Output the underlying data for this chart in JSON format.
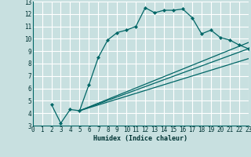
{
  "xlabel": "Humidex (Indice chaleur)",
  "xlim": [
    0,
    23
  ],
  "ylim": [
    3,
    13
  ],
  "xticks": [
    0,
    1,
    2,
    3,
    4,
    5,
    6,
    7,
    8,
    9,
    10,
    11,
    12,
    13,
    14,
    15,
    16,
    17,
    18,
    19,
    20,
    21,
    22,
    23
  ],
  "yticks": [
    3,
    4,
    5,
    6,
    7,
    8,
    9,
    10,
    11,
    12,
    13
  ],
  "background_color": "#c8e0e0",
  "line_color": "#006666",
  "grid_color": "#ffffff",
  "lines": [
    {
      "x": [
        2,
        3,
        4,
        5,
        6,
        7,
        8,
        9,
        10,
        11,
        12,
        13,
        14,
        15,
        16,
        17,
        18,
        19,
        20,
        21,
        22,
        23
      ],
      "y": [
        4.7,
        3.2,
        4.3,
        4.2,
        6.3,
        8.5,
        9.9,
        10.5,
        10.7,
        11.0,
        12.5,
        12.1,
        12.3,
        12.3,
        12.4,
        11.7,
        10.4,
        10.7,
        10.1,
        9.9,
        9.5,
        9.2
      ],
      "markers": true
    },
    {
      "x": [
        5,
        23
      ],
      "y": [
        4.2,
        9.2
      ],
      "markers": false
    },
    {
      "x": [
        5,
        23
      ],
      "y": [
        4.2,
        8.4
      ],
      "markers": false
    },
    {
      "x": [
        5,
        23
      ],
      "y": [
        4.2,
        9.7
      ],
      "markers": false
    }
  ]
}
